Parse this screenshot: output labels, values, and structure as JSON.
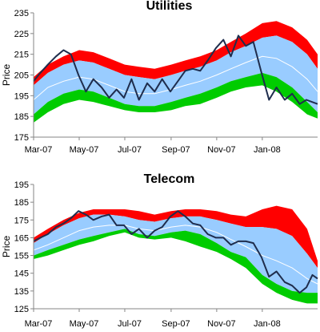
{
  "chart_data": [
    {
      "type": "area",
      "title": "Utilities",
      "xlabel": "",
      "ylabel": "Price",
      "ylim": [
        175,
        235
      ],
      "yticks": [
        175,
        185,
        195,
        205,
        215,
        225,
        235
      ],
      "xlim": [
        "2007-03-01",
        "2008-03-15"
      ],
      "xticks": [
        {
          "date": "2007-03-01",
          "label": "Mar-07"
        },
        {
          "date": "2007-05-01",
          "label": "May-07"
        },
        {
          "date": "2007-07-01",
          "label": "Jul-07"
        },
        {
          "date": "2007-09-01",
          "label": "Sep-07"
        },
        {
          "date": "2007-11-01",
          "label": "Nov-07"
        },
        {
          "date": "2008-01-01",
          "label": "Jan-08"
        }
      ],
      "grid": false,
      "legend": "none",
      "colors": {
        "upper_band": "#ff0000",
        "inner_band": "#99ccff",
        "lower_band": "#00cc00",
        "mid_line": "#ffffff",
        "price_line": "#1f2d4d"
      },
      "bands": {
        "x": [
          "2007-03-01",
          "2007-03-20",
          "2007-04-10",
          "2007-05-01",
          "2007-05-20",
          "2007-06-10",
          "2007-07-01",
          "2007-07-20",
          "2007-08-10",
          "2007-09-01",
          "2007-09-20",
          "2007-10-10",
          "2007-11-01",
          "2007-11-20",
          "2007-12-10",
          "2008-01-01",
          "2008-01-20",
          "2008-02-10",
          "2008-03-01",
          "2008-03-15"
        ],
        "outer_upper": [
          204,
          210,
          214,
          217,
          216,
          213,
          210,
          209,
          208,
          210,
          212,
          214,
          217,
          221,
          225,
          230,
          231,
          228,
          222,
          215
        ],
        "inner_upper": [
          200,
          206,
          210,
          212,
          211,
          208,
          205,
          204,
          203,
          205,
          207,
          209,
          212,
          216,
          219,
          223,
          224,
          221,
          215,
          208
        ],
        "mid": [
          193,
          199,
          202,
          204,
          203,
          200,
          197,
          196,
          196,
          198,
          200,
          202,
          205,
          208,
          211,
          214,
          213,
          209,
          203,
          197
        ],
        "inner_lower": [
          186,
          192,
          196,
          198,
          197,
          194,
          191,
          190,
          190,
          192,
          194,
          196,
          199,
          202,
          204,
          206,
          204,
          199,
          192,
          187
        ],
        "outer_lower": [
          182,
          187,
          191,
          193,
          192,
          190,
          188,
          187,
          187,
          188,
          190,
          191,
          194,
          197,
          199,
          200,
          197,
          192,
          186,
          184
        ]
      },
      "series": [
        {
          "values": [
            [
              "2007-03-01",
              202
            ],
            [
              "2007-03-10",
              206
            ],
            [
              "2007-03-20",
              210
            ],
            [
              "2007-03-31",
              214
            ],
            [
              "2007-04-10",
              217
            ],
            [
              "2007-04-20",
              215
            ],
            [
              "2007-04-30",
              205
            ],
            [
              "2007-05-10",
              197
            ],
            [
              "2007-05-20",
              203
            ],
            [
              "2007-05-31",
              199
            ],
            [
              "2007-06-10",
              194
            ],
            [
              "2007-06-20",
              198
            ],
            [
              "2007-06-30",
              194
            ],
            [
              "2007-07-10",
              203
            ],
            [
              "2007-07-20",
              193
            ],
            [
              "2007-07-31",
              201
            ],
            [
              "2007-08-10",
              197
            ],
            [
              "2007-08-20",
              203
            ],
            [
              "2007-08-31",
              197
            ],
            [
              "2007-09-10",
              202
            ],
            [
              "2007-09-20",
              207
            ],
            [
              "2007-09-30",
              208
            ],
            [
              "2007-10-10",
              207
            ],
            [
              "2007-10-20",
              212
            ],
            [
              "2007-10-31",
              218
            ],
            [
              "2007-11-10",
              222
            ],
            [
              "2007-11-20",
              214
            ],
            [
              "2007-11-30",
              224
            ],
            [
              "2007-12-10",
              219
            ],
            [
              "2007-12-20",
              221
            ],
            [
              "2007-12-31",
              206
            ],
            [
              "2008-01-10",
              193
            ],
            [
              "2008-01-20",
              199
            ],
            [
              "2008-01-31",
              193
            ],
            [
              "2008-02-10",
              196
            ],
            [
              "2008-02-20",
              191
            ],
            [
              "2008-02-29",
              193
            ],
            [
              "2008-03-15",
              191
            ]
          ]
        }
      ]
    },
    {
      "type": "area",
      "title": "Telecom",
      "xlabel": "",
      "ylabel": "Price",
      "ylim": [
        125,
        195
      ],
      "yticks": [
        125,
        135,
        145,
        155,
        165,
        175,
        185,
        195
      ],
      "xlim": [
        "2007-03-01",
        "2008-03-15"
      ],
      "xticks": [
        {
          "date": "2007-03-01",
          "label": "Mar-07"
        },
        {
          "date": "2007-05-01",
          "label": "May-07"
        },
        {
          "date": "2007-07-01",
          "label": "Jul-07"
        },
        {
          "date": "2007-09-01",
          "label": "Sep-07"
        },
        {
          "date": "2007-11-01",
          "label": "Nov-07"
        },
        {
          "date": "2008-01-01",
          "label": "Jan-08"
        }
      ],
      "grid": false,
      "legend": "none",
      "colors": {
        "upper_band": "#ff0000",
        "inner_band": "#99ccff",
        "lower_band": "#00cc00",
        "mid_line": "#ffffff",
        "price_line": "#1f2d4d"
      },
      "bands": {
        "x": [
          "2007-03-01",
          "2007-03-20",
          "2007-04-10",
          "2007-05-01",
          "2007-05-20",
          "2007-06-10",
          "2007-07-01",
          "2007-07-20",
          "2007-08-10",
          "2007-09-01",
          "2007-09-20",
          "2007-10-10",
          "2007-11-01",
          "2007-11-20",
          "2007-12-10",
          "2008-01-01",
          "2008-01-20",
          "2008-02-10",
          "2008-03-01",
          "2008-03-15"
        ],
        "outer_upper": [
          165,
          170,
          175,
          179,
          181,
          181,
          181,
          180,
          178,
          180,
          181,
          181,
          180,
          178,
          177,
          181,
          183,
          181,
          170,
          152
        ],
        "inner_upper": [
          162,
          167,
          172,
          176,
          178,
          178,
          177,
          175,
          174,
          176,
          177,
          177,
          175,
          173,
          171,
          171,
          170,
          166,
          156,
          148
        ],
        "mid": [
          158,
          161,
          165,
          169,
          171,
          172,
          172,
          170,
          169,
          171,
          172,
          171,
          168,
          164,
          160,
          155,
          152,
          148,
          142,
          139
        ],
        "inner_lower": [
          155,
          158,
          161,
          164,
          166,
          168,
          170,
          167,
          166,
          168,
          169,
          167,
          162,
          157,
          154,
          144,
          139,
          135,
          134,
          134
        ],
        "outer_lower": [
          153,
          155,
          158,
          161,
          163,
          166,
          168,
          165,
          164,
          165,
          163,
          160,
          157,
          153,
          148,
          139,
          134,
          130,
          128,
          128
        ]
      },
      "series": [
        {
          "values": [
            [
              "2007-03-01",
              163
            ],
            [
              "2007-03-10",
              165
            ],
            [
              "2007-03-20",
              167
            ],
            [
              "2007-03-31",
              171
            ],
            [
              "2007-04-10",
              173
            ],
            [
              "2007-04-20",
              176
            ],
            [
              "2007-04-30",
              180
            ],
            [
              "2007-05-10",
              178
            ],
            [
              "2007-05-20",
              175
            ],
            [
              "2007-05-31",
              177
            ],
            [
              "2007-06-10",
              178
            ],
            [
              "2007-06-20",
              172
            ],
            [
              "2007-06-30",
              172
            ],
            [
              "2007-07-10",
              167
            ],
            [
              "2007-07-20",
              170
            ],
            [
              "2007-07-31",
              165
            ],
            [
              "2007-08-10",
              169
            ],
            [
              "2007-08-20",
              171
            ],
            [
              "2007-08-31",
              177
            ],
            [
              "2007-09-10",
              180
            ],
            [
              "2007-09-20",
              177
            ],
            [
              "2007-09-30",
              173
            ],
            [
              "2007-10-10",
              172
            ],
            [
              "2007-10-20",
              167
            ],
            [
              "2007-10-31",
              165
            ],
            [
              "2007-11-10",
              165
            ],
            [
              "2007-11-20",
              161
            ],
            [
              "2007-11-30",
              163
            ],
            [
              "2007-12-10",
              163
            ],
            [
              "2007-12-20",
              162
            ],
            [
              "2007-12-31",
              154
            ],
            [
              "2008-01-10",
              143
            ],
            [
              "2008-01-20",
              146
            ],
            [
              "2008-01-31",
              140
            ],
            [
              "2008-02-10",
              138
            ],
            [
              "2008-02-20",
              134
            ],
            [
              "2008-02-29",
              137
            ],
            [
              "2008-03-08",
              144
            ],
            [
              "2008-03-15",
              142
            ]
          ]
        }
      ]
    }
  ]
}
